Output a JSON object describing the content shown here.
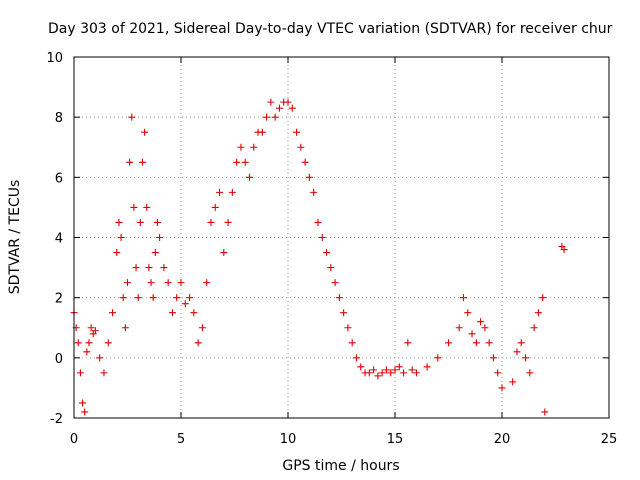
{
  "chart_data": {
    "type": "scatter",
    "title": "Day 303 of 2021, Sidereal Day-to-day VTEC variation (SDTVAR) for receiver chur",
    "xlabel": "GPS time / hours",
    "ylabel": "SDTVAR / TECUs",
    "xlim": [
      0,
      25
    ],
    "ylim": [
      -2,
      10
    ],
    "xticks": [
      0,
      5,
      10,
      15,
      20,
      25
    ],
    "yticks": [
      -2,
      0,
      2,
      4,
      6,
      8,
      10
    ],
    "xtick_labels": [
      "0",
      "5",
      "10",
      "15",
      "20",
      "25"
    ],
    "ytick_labels": [
      "-2",
      "0",
      "2",
      "4",
      "6",
      "8",
      "10"
    ],
    "grid": true,
    "marker": "+",
    "marker_color": "#e00000",
    "series": [
      {
        "name": "SDTVAR",
        "x": [
          0.0,
          0.1,
          0.2,
          0.3,
          0.4,
          0.5,
          0.6,
          0.7,
          0.8,
          0.9,
          1.0,
          1.2,
          1.4,
          1.6,
          1.8,
          2.0,
          2.1,
          2.2,
          2.3,
          2.4,
          2.5,
          2.6,
          2.7,
          2.8,
          2.9,
          3.0,
          3.1,
          3.2,
          3.3,
          3.4,
          3.5,
          3.6,
          3.7,
          3.8,
          3.9,
          4.0,
          4.2,
          4.4,
          4.6,
          4.8,
          5.0,
          5.2,
          5.4,
          5.6,
          5.8,
          6.0,
          6.2,
          6.4,
          6.6,
          6.8,
          7.0,
          7.2,
          7.4,
          7.6,
          7.8,
          8.0,
          8.2,
          8.4,
          8.6,
          8.8,
          9.0,
          9.2,
          9.4,
          9.6,
          9.8,
          10.0,
          10.2,
          10.4,
          10.6,
          10.8,
          11.0,
          11.2,
          11.4,
          11.6,
          11.8,
          12.0,
          12.2,
          12.4,
          12.6,
          12.8,
          13.0,
          13.2,
          13.4,
          13.6,
          13.8,
          14.0,
          14.2,
          14.4,
          14.6,
          14.8,
          15.0,
          15.2,
          15.4,
          15.6,
          15.8,
          16.0,
          16.5,
          17.0,
          17.5,
          18.0,
          18.2,
          18.4,
          18.6,
          18.8,
          19.0,
          19.2,
          19.4,
          19.6,
          19.8,
          20.0,
          20.5,
          20.7,
          20.9,
          21.1,
          21.3,
          21.5,
          21.7,
          21.9,
          22.0,
          22.8,
          22.9
        ],
        "y": [
          1.5,
          1.0,
          0.5,
          -0.5,
          -1.5,
          -1.8,
          0.2,
          0.5,
          1.0,
          0.8,
          0.9,
          0.0,
          -0.5,
          0.5,
          1.5,
          3.5,
          4.5,
          4.0,
          2.0,
          1.0,
          2.5,
          6.5,
          8.0,
          5.0,
          3.0,
          2.0,
          4.5,
          6.5,
          7.5,
          5.0,
          3.0,
          2.5,
          2.0,
          3.5,
          4.5,
          4.0,
          3.0,
          2.5,
          1.5,
          2.0,
          2.5,
          1.8,
          2.0,
          1.5,
          0.5,
          1.0,
          2.5,
          4.5,
          5.0,
          5.5,
          3.5,
          4.5,
          5.5,
          6.5,
          7.0,
          6.5,
          6.0,
          7.0,
          7.5,
          7.5,
          8.0,
          8.5,
          8.0,
          8.3,
          8.5,
          8.5,
          8.3,
          7.5,
          7.0,
          6.5,
          6.0,
          5.5,
          4.5,
          4.0,
          3.5,
          3.0,
          2.5,
          2.0,
          1.5,
          1.0,
          0.5,
          0.0,
          -0.3,
          -0.5,
          -0.5,
          -0.4,
          -0.6,
          -0.5,
          -0.4,
          -0.5,
          -0.4,
          -0.3,
          -0.5,
          0.5,
          -0.4,
          -0.5,
          -0.3,
          0.0,
          0.5,
          1.0,
          2.0,
          1.5,
          0.8,
          0.5,
          1.2,
          1.0,
          0.5,
          0.0,
          -0.5,
          -1.0,
          -0.8,
          0.2,
          0.5,
          0.0,
          -0.5,
          1.0,
          1.5,
          2.0,
          -1.8,
          3.7,
          3.6
        ]
      }
    ]
  }
}
